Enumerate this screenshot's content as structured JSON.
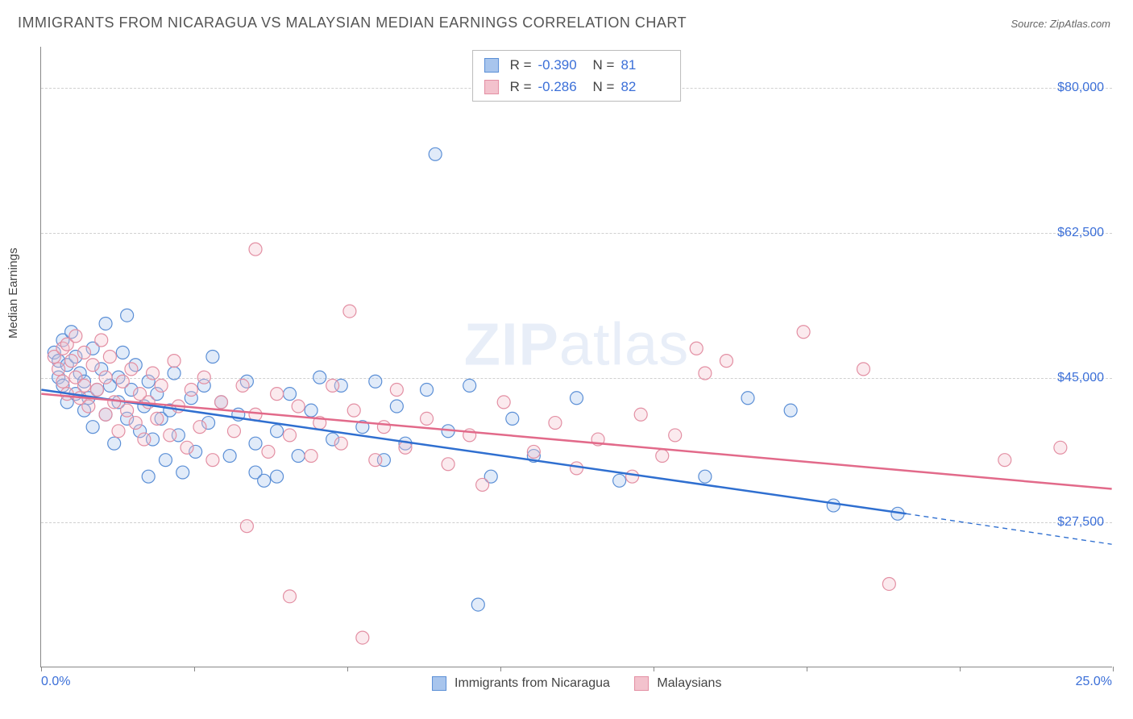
{
  "title": "IMMIGRANTS FROM NICARAGUA VS MALAYSIAN MEDIAN EARNINGS CORRELATION CHART",
  "source_label": "Source: ZipAtlas.com",
  "watermark_zip": "ZIP",
  "watermark_atlas": "atlas",
  "y_axis_label": "Median Earnings",
  "chart": {
    "type": "scatter",
    "background_color": "#ffffff",
    "grid_color": "#d0d0d0",
    "axis_color": "#888888",
    "x_range": [
      0.0,
      25.0
    ],
    "y_range": [
      10000,
      85000
    ],
    "y_ticks": [
      {
        "value": 27500,
        "label": "$27,500"
      },
      {
        "value": 45000,
        "label": "$45,000"
      },
      {
        "value": 62500,
        "label": "$62,500"
      },
      {
        "value": 80000,
        "label": "$80,000"
      }
    ],
    "x_tick_positions": [
      0.0,
      3.57,
      7.14,
      10.71,
      14.29,
      17.86,
      21.43,
      25.0
    ],
    "x_axis_min_label": "0.0%",
    "x_axis_max_label": "25.0%",
    "marker_radius": 8,
    "marker_fill_opacity": 0.35,
    "marker_stroke_width": 1.2,
    "trend_line_width": 2.5,
    "series": [
      {
        "name": "Immigrants from Nicaragua",
        "color_fill": "#a8c5ed",
        "color_stroke": "#5b8fd6",
        "trend_color": "#2f6fd0",
        "correlation_R": "-0.390",
        "correlation_N": "81",
        "trend_line": {
          "x1": 0.0,
          "y1": 43500,
          "x2": 20.2,
          "y2": 28500
        },
        "trend_extension": {
          "x1": 20.2,
          "y1": 28500,
          "x2": 25.0,
          "y2": 24800
        },
        "points": [
          [
            0.3,
            48000
          ],
          [
            0.4,
            47000
          ],
          [
            0.4,
            45000
          ],
          [
            0.5,
            49500
          ],
          [
            0.5,
            44000
          ],
          [
            0.6,
            42000
          ],
          [
            0.6,
            46500
          ],
          [
            0.7,
            50500
          ],
          [
            0.8,
            43000
          ],
          [
            0.8,
            47500
          ],
          [
            0.9,
            45500
          ],
          [
            1.0,
            41000
          ],
          [
            1.0,
            44500
          ],
          [
            1.1,
            42500
          ],
          [
            1.2,
            48500
          ],
          [
            1.2,
            39000
          ],
          [
            1.3,
            43500
          ],
          [
            1.4,
            46000
          ],
          [
            1.5,
            51500
          ],
          [
            1.5,
            40500
          ],
          [
            1.6,
            44000
          ],
          [
            1.7,
            37000
          ],
          [
            1.8,
            42000
          ],
          [
            1.8,
            45000
          ],
          [
            1.9,
            48000
          ],
          [
            2.0,
            52500
          ],
          [
            2.0,
            40000
          ],
          [
            2.1,
            43500
          ],
          [
            2.2,
            46500
          ],
          [
            2.3,
            38500
          ],
          [
            2.4,
            41500
          ],
          [
            2.5,
            44500
          ],
          [
            2.5,
            33000
          ],
          [
            2.6,
            37500
          ],
          [
            2.7,
            43000
          ],
          [
            2.8,
            40000
          ],
          [
            2.9,
            35000
          ],
          [
            3.0,
            41000
          ],
          [
            3.1,
            45500
          ],
          [
            3.2,
            38000
          ],
          [
            3.3,
            33500
          ],
          [
            3.5,
            42500
          ],
          [
            3.6,
            36000
          ],
          [
            3.8,
            44000
          ],
          [
            3.9,
            39500
          ],
          [
            4.0,
            47500
          ],
          [
            4.2,
            42000
          ],
          [
            4.4,
            35500
          ],
          [
            4.6,
            40500
          ],
          [
            4.8,
            44500
          ],
          [
            5.0,
            37000
          ],
          [
            5.0,
            33500
          ],
          [
            5.2,
            32500
          ],
          [
            5.5,
            33000
          ],
          [
            5.5,
            38500
          ],
          [
            5.8,
            43000
          ],
          [
            6.0,
            35500
          ],
          [
            6.3,
            41000
          ],
          [
            6.5,
            45000
          ],
          [
            6.8,
            37500
          ],
          [
            7.0,
            44000
          ],
          [
            7.5,
            39000
          ],
          [
            7.8,
            44500
          ],
          [
            8.0,
            35000
          ],
          [
            8.3,
            41500
          ],
          [
            8.5,
            37000
          ],
          [
            9.2,
            72000
          ],
          [
            9.0,
            43500
          ],
          [
            9.5,
            38500
          ],
          [
            10.0,
            44000
          ],
          [
            10.2,
            17500
          ],
          [
            10.5,
            33000
          ],
          [
            11.0,
            40000
          ],
          [
            11.5,
            35500
          ],
          [
            12.5,
            42500
          ],
          [
            13.5,
            32500
          ],
          [
            15.5,
            33000
          ],
          [
            16.5,
            42500
          ],
          [
            17.5,
            41000
          ],
          [
            18.5,
            29500
          ],
          [
            20.0,
            28500
          ]
        ]
      },
      {
        "name": "Malaysians",
        "color_fill": "#f3c2cd",
        "color_stroke": "#e38fa3",
        "trend_color": "#e26a8a",
        "correlation_R": "-0.286",
        "correlation_N": "82",
        "trend_line": {
          "x1": 0.0,
          "y1": 43000,
          "x2": 25.0,
          "y2": 31500
        },
        "trend_extension": null,
        "points": [
          [
            0.3,
            47500
          ],
          [
            0.4,
            46000
          ],
          [
            0.5,
            48500
          ],
          [
            0.5,
            44500
          ],
          [
            0.6,
            49000
          ],
          [
            0.6,
            43000
          ],
          [
            0.7,
            47000
          ],
          [
            0.8,
            45000
          ],
          [
            0.8,
            50000
          ],
          [
            0.9,
            42500
          ],
          [
            1.0,
            44000
          ],
          [
            1.0,
            48000
          ],
          [
            1.1,
            41500
          ],
          [
            1.2,
            46500
          ],
          [
            1.3,
            43500
          ],
          [
            1.4,
            49500
          ],
          [
            1.5,
            40500
          ],
          [
            1.5,
            45000
          ],
          [
            1.6,
            47500
          ],
          [
            1.7,
            42000
          ],
          [
            1.8,
            38500
          ],
          [
            1.9,
            44500
          ],
          [
            2.0,
            41000
          ],
          [
            2.1,
            46000
          ],
          [
            2.2,
            39500
          ],
          [
            2.3,
            43000
          ],
          [
            2.4,
            37500
          ],
          [
            2.5,
            42000
          ],
          [
            2.6,
            45500
          ],
          [
            2.7,
            40000
          ],
          [
            2.8,
            44000
          ],
          [
            3.0,
            38000
          ],
          [
            3.1,
            47000
          ],
          [
            3.2,
            41500
          ],
          [
            3.4,
            36500
          ],
          [
            3.5,
            43500
          ],
          [
            3.7,
            39000
          ],
          [
            3.8,
            45000
          ],
          [
            4.0,
            35000
          ],
          [
            4.2,
            42000
          ],
          [
            4.5,
            38500
          ],
          [
            4.7,
            44000
          ],
          [
            4.8,
            27000
          ],
          [
            5.0,
            60500
          ],
          [
            5.0,
            40500
          ],
          [
            5.3,
            36000
          ],
          [
            5.5,
            43000
          ],
          [
            5.8,
            38000
          ],
          [
            5.8,
            18500
          ],
          [
            6.0,
            41500
          ],
          [
            6.3,
            35500
          ],
          [
            6.5,
            39500
          ],
          [
            6.8,
            44000
          ],
          [
            7.0,
            37000
          ],
          [
            7.2,
            53000
          ],
          [
            7.3,
            41000
          ],
          [
            7.5,
            13500
          ],
          [
            7.8,
            35000
          ],
          [
            8.0,
            39000
          ],
          [
            8.3,
            43500
          ],
          [
            8.5,
            36500
          ],
          [
            9.0,
            40000
          ],
          [
            9.5,
            34500
          ],
          [
            10.0,
            38000
          ],
          [
            10.3,
            32000
          ],
          [
            10.8,
            42000
          ],
          [
            11.5,
            36000
          ],
          [
            12.0,
            39500
          ],
          [
            12.5,
            34000
          ],
          [
            13.0,
            37500
          ],
          [
            13.8,
            33000
          ],
          [
            14.5,
            35500
          ],
          [
            15.3,
            48500
          ],
          [
            15.5,
            45500
          ],
          [
            14.8,
            38000
          ],
          [
            16.0,
            47000
          ],
          [
            17.8,
            50500
          ],
          [
            19.2,
            46000
          ],
          [
            19.8,
            20000
          ],
          [
            22.5,
            35000
          ],
          [
            23.8,
            36500
          ],
          [
            14.0,
            40500
          ]
        ]
      }
    ]
  },
  "legend_bottom": [
    {
      "swatch_fill": "#a8c5ed",
      "swatch_stroke": "#5b8fd6",
      "label": "Immigrants from Nicaragua"
    },
    {
      "swatch_fill": "#f3c2cd",
      "swatch_stroke": "#e38fa3",
      "label": "Malaysians"
    }
  ],
  "legend_top_labels": {
    "R": "R =",
    "N": "N ="
  }
}
